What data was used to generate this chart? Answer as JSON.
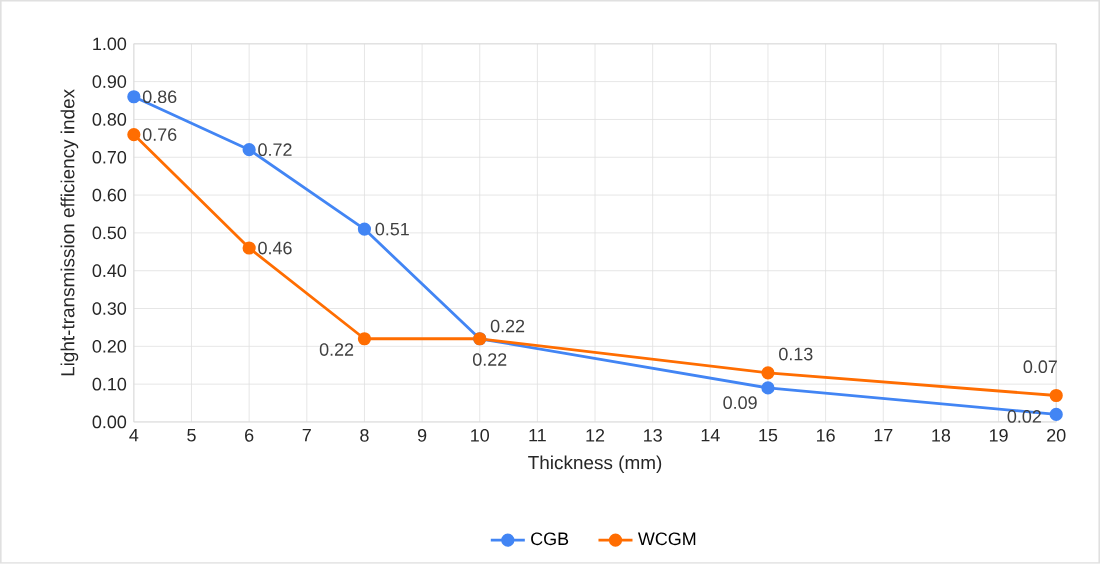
{
  "chart_data": {
    "type": "line",
    "xlabel": "Thickness (mm)",
    "ylabel": "Light-transmission efficiency index",
    "x": [
      4,
      6,
      8,
      10,
      15,
      20
    ],
    "series": [
      {
        "name": "CGB",
        "color": "#4285f4",
        "values": [
          0.86,
          0.72,
          0.51,
          0.22,
          0.09,
          0.02
        ]
      },
      {
        "name": "WCGM",
        "color": "#ff6d01",
        "values": [
          0.76,
          0.46,
          0.22,
          0.22,
          0.13,
          0.07
        ]
      }
    ],
    "xlim": [
      4,
      20
    ],
    "xticks": [
      4,
      5,
      6,
      7,
      8,
      9,
      10,
      11,
      12,
      13,
      14,
      15,
      16,
      17,
      18,
      19,
      20
    ],
    "ylim": [
      0,
      1
    ],
    "yticks": [
      {
        "value": 0,
        "label": "0.00"
      },
      {
        "value": 0.1,
        "label": "0.10"
      },
      {
        "value": 0.2,
        "label": "0.20"
      },
      {
        "value": 0.3,
        "label": "0.30"
      },
      {
        "value": 0.4,
        "label": "0.40"
      },
      {
        "value": 0.5,
        "label": "0.50"
      },
      {
        "value": 0.6,
        "label": "0.60"
      },
      {
        "value": 0.7,
        "label": "0.70"
      },
      {
        "value": 0.8,
        "label": "0.80"
      },
      {
        "value": 0.9,
        "label": "0.90"
      },
      {
        "value": 1,
        "label": "1.00"
      }
    ],
    "grid": true,
    "legend": "bottom",
    "marker": "circle",
    "line_style": "solid",
    "data_labels": true
  }
}
